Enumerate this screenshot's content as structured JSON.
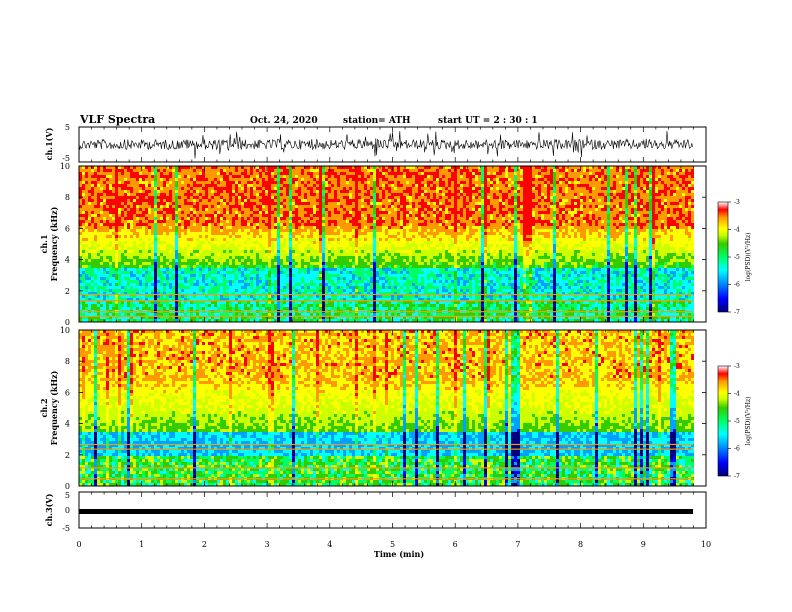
{
  "header": {
    "title": "VLF Spectra",
    "date": "Oct. 24, 2020",
    "station": "station= ATH",
    "start": "start  UT  =   2  : 30 : 1"
  },
  "colors": {
    "spectrum": [
      "#00007a",
      "#0000ff",
      "#00a0ff",
      "#00ffff",
      "#00ff66",
      "#33cc00",
      "#ccff00",
      "#ffff00",
      "#ff9900",
      "#ff0000",
      "#ffffff"
    ]
  },
  "chart_data": [
    {
      "type": "line",
      "id": "ch1-waveform",
      "ylabel": "ch.1(V)",
      "ylim": [
        -5,
        5
      ],
      "yticks": [
        5,
        -5
      ],
      "x_range_min": [
        0,
        10
      ],
      "description_values": "dense noise waveform centered near 0 V, excursions to about ±3 V"
    },
    {
      "type": "heatmap",
      "id": "ch1-spectrogram",
      "ylabel": "ch.1\nFrequency  (kHz)",
      "ylim": [
        0,
        10
      ],
      "yticks": [
        0,
        2,
        4,
        6,
        8,
        10
      ],
      "colorbar": {
        "label": "log(PSD)(V²/Hz)",
        "range": [
          -7,
          -3
        ],
        "ticks": [
          -3,
          -4,
          -5,
          -6,
          -7
        ]
      }
    },
    {
      "type": "heatmap",
      "id": "ch2-spectrogram",
      "ylabel": "ch.2\nFrequency  (kHz)",
      "ylim": [
        0,
        10
      ],
      "yticks": [
        0,
        2,
        4,
        6,
        8,
        10
      ],
      "colorbar": {
        "label": "log(PSD)(V²/Hz)",
        "range": [
          -7,
          -3
        ],
        "ticks": [
          -3,
          -4,
          -5,
          -6,
          -7
        ]
      }
    },
    {
      "type": "line",
      "id": "ch3-waveform",
      "ylabel": "ch.3(V)",
      "ylim": [
        -5,
        5
      ],
      "yticks": [
        5,
        0,
        -5
      ],
      "values_note": "constant thick trace near 0 V"
    }
  ],
  "xaxis": {
    "label": "Time  (min)",
    "ticks": [
      "0",
      "1",
      "2",
      "3",
      "4",
      "5",
      "6",
      "7",
      "8",
      "9",
      "10"
    ],
    "range": [
      0,
      10
    ]
  }
}
